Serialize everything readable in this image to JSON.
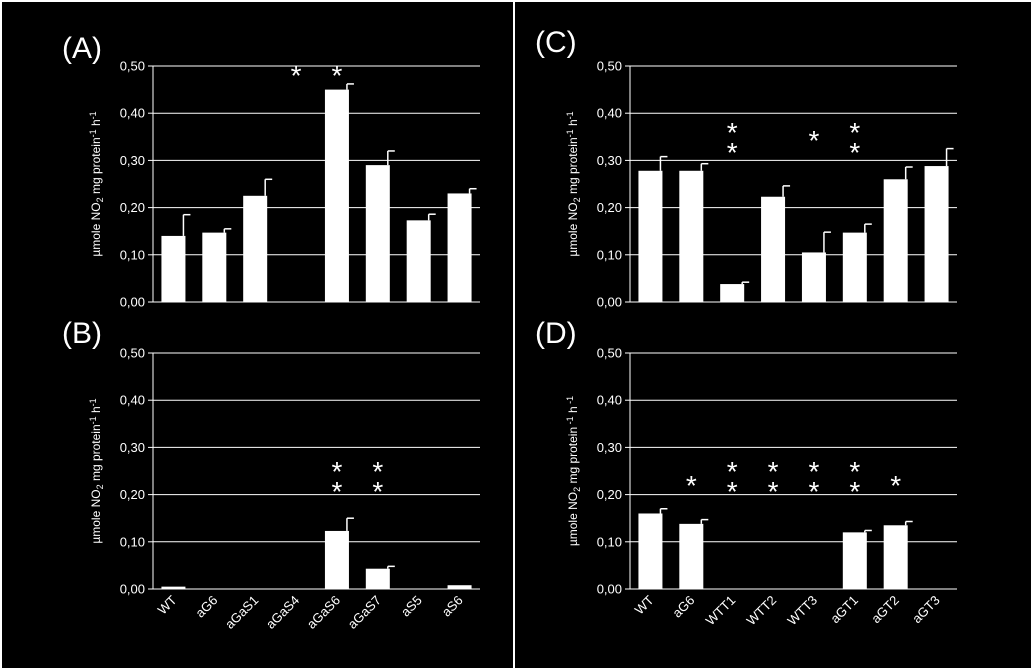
{
  "chart_data": [
    {
      "type": "bar",
      "panel": "(A)",
      "ylabel": [
        "µmole NO",
        "2",
        " mg protein",
        "-1",
        " h",
        "-1"
      ],
      "ylim": [
        0,
        0.5
      ],
      "yticks": [
        "0,00",
        "0,10",
        "0,20",
        "0,30",
        "0,40",
        "0,50"
      ],
      "categories": [
        "WT",
        "aG6",
        "aGaS1",
        "aGaS4",
        "aGaS6",
        "aGaS7",
        "aS5",
        "aS6"
      ],
      "values": [
        0.14,
        0.147,
        0.225,
        0,
        0.45,
        0.29,
        0.173,
        0.23
      ],
      "errors": [
        0.045,
        0.008,
        0.035,
        0,
        0.012,
        0.03,
        0.013,
        0.01
      ],
      "stars": [
        0,
        0,
        0,
        1,
        1,
        0,
        0,
        0
      ],
      "show_xticklabels": false,
      "grid": true
    },
    {
      "type": "bar",
      "panel": "(B)",
      "ylabel": [
        "µmole NO",
        "2",
        " mg protein",
        "-1",
        " h",
        "-1"
      ],
      "ylim": [
        0,
        0.5
      ],
      "yticks": [
        "0,00",
        "0,10",
        "0,20",
        "0,30",
        "0,40",
        "0,50"
      ],
      "categories": [
        "WT",
        "aG6",
        "aGaS1",
        "aGaS4",
        "aGaS6",
        "aGaS7",
        "aS5",
        "aS6"
      ],
      "values": [
        0.005,
        0,
        0,
        0,
        0.123,
        0.043,
        0,
        0.008
      ],
      "errors": [
        0,
        0,
        0,
        0,
        0.027,
        0.005,
        0,
        0
      ],
      "stars": [
        0,
        0,
        0,
        0,
        2,
        2,
        0,
        0
      ],
      "show_xticklabels": true,
      "grid": true
    },
    {
      "type": "bar",
      "panel": "(C)",
      "ylabel": [
        "µmole NO",
        "2",
        " mg protein",
        "-1",
        " h",
        "-1"
      ],
      "ylim": [
        0,
        0.5
      ],
      "yticks": [
        "0,00",
        "0,10",
        "0,20",
        "0,30",
        "0,40",
        "0,50"
      ],
      "categories": [
        "WT",
        "aG6",
        "WTT1",
        "WTT2",
        "WTT3",
        "aGT1",
        "aGT2",
        "aGT3"
      ],
      "values": [
        0.278,
        0.278,
        0.038,
        0.223,
        0.105,
        0.147,
        0.26,
        0.288
      ],
      "errors": [
        0.03,
        0.015,
        0.004,
        0.023,
        0.043,
        0.018,
        0.026,
        0.037
      ],
      "stars": [
        0,
        0,
        2,
        0,
        1,
        2,
        0,
        0
      ],
      "show_xticklabels": false,
      "grid": true
    },
    {
      "type": "bar",
      "panel": "(D)",
      "ylabel": [
        "µmole NO",
        "2",
        " mg protein",
        " -1",
        " h",
        " -1"
      ],
      "ylim": [
        0,
        0.5
      ],
      "yticks": [
        "0,00",
        "0,10",
        "0,20",
        "0,30",
        "0,40",
        "0,50"
      ],
      "categories": [
        "WT",
        "aG6",
        "WTT1",
        "WTT2",
        "WTT3",
        "aGT1",
        "aGT2",
        "aGT3"
      ],
      "values": [
        0.16,
        0.138,
        0,
        0,
        0,
        0.12,
        0.135,
        0
      ],
      "errors": [
        0.01,
        0.009,
        0,
        0,
        0,
        0.004,
        0.008,
        0
      ],
      "stars": [
        0,
        1,
        2,
        2,
        2,
        2,
        1,
        0
      ],
      "show_xticklabels": true,
      "grid": true
    }
  ],
  "star_glyph": "*",
  "colors": {
    "background": "#000000",
    "bar": "#ffffff",
    "text": "#ffffff",
    "grid": "#ffffff"
  }
}
